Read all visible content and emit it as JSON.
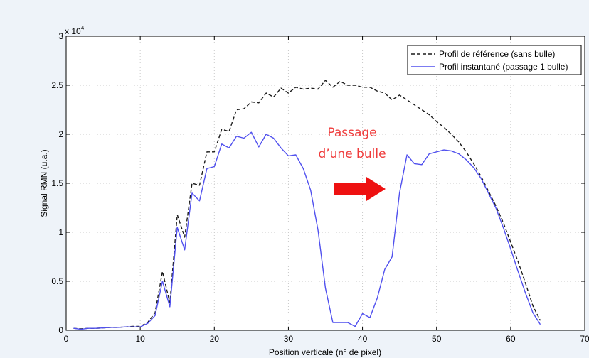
{
  "chart_data": {
    "type": "line",
    "xlabel": "Position verticale (n° de pixel)",
    "ylabel": "Signal RMN (u.a.)",
    "exponent_label": "x 10",
    "exponent_power": "4",
    "xlim": [
      0,
      70
    ],
    "ylim": [
      0,
      3
    ],
    "x_ticks": [
      0,
      10,
      20,
      30,
      40,
      50,
      60,
      70
    ],
    "y_ticks": [
      0,
      0.5,
      1,
      1.5,
      2,
      2.5,
      3
    ],
    "y_tick_labels": [
      "0",
      "0.5",
      "1",
      "1.5",
      "2",
      "2.5",
      "3"
    ],
    "grid": true,
    "legend_position": "top-right",
    "series": [
      {
        "name": "Profil de référence (sans bulle)",
        "color": "#1a1a1a",
        "style": "dashed",
        "x": [
          1,
          2,
          3,
          4,
          5,
          6,
          7,
          8,
          9,
          10,
          11,
          12,
          13,
          14,
          15,
          16,
          17,
          18,
          19,
          20,
          21,
          22,
          23,
          24,
          25,
          26,
          27,
          28,
          29,
          30,
          31,
          32,
          33,
          34,
          35,
          36,
          37,
          38,
          39,
          40,
          41,
          42,
          43,
          44,
          45,
          46,
          47,
          48,
          49,
          50,
          51,
          52,
          53,
          54,
          55,
          56,
          57,
          58,
          59,
          60,
          61,
          62,
          63,
          64
        ],
        "values": [
          0.02,
          0.015,
          0.02,
          0.02,
          0.025,
          0.03,
          0.03,
          0.035,
          0.04,
          0.04,
          0.08,
          0.18,
          0.6,
          0.28,
          1.18,
          0.95,
          1.5,
          1.48,
          1.82,
          1.82,
          2.05,
          2.03,
          2.25,
          2.26,
          2.33,
          2.32,
          2.42,
          2.38,
          2.47,
          2.42,
          2.48,
          2.46,
          2.47,
          2.46,
          2.55,
          2.48,
          2.54,
          2.5,
          2.5,
          2.48,
          2.48,
          2.44,
          2.42,
          2.35,
          2.4,
          2.35,
          2.3,
          2.25,
          2.2,
          2.13,
          2.07,
          2.0,
          1.92,
          1.82,
          1.7,
          1.57,
          1.42,
          1.27,
          1.1,
          0.9,
          0.7,
          0.48,
          0.25,
          0.1
        ]
      },
      {
        "name": "Profil instantané (passage 1 bulle)",
        "color": "#5050ee",
        "style": "solid",
        "x": [
          1,
          2,
          3,
          4,
          5,
          6,
          7,
          8,
          9,
          10,
          11,
          12,
          13,
          14,
          15,
          16,
          17,
          18,
          19,
          20,
          21,
          22,
          23,
          24,
          25,
          26,
          27,
          28,
          29,
          30,
          31,
          32,
          33,
          34,
          35,
          36,
          37,
          38,
          39,
          40,
          41,
          42,
          43,
          44,
          45,
          46,
          47,
          48,
          49,
          50,
          51,
          52,
          53,
          54,
          55,
          56,
          57,
          58,
          59,
          60,
          61,
          62,
          63,
          64
        ],
        "values": [
          0.02,
          0.01,
          0.02,
          0.02,
          0.025,
          0.03,
          0.03,
          0.035,
          0.035,
          0.035,
          0.07,
          0.15,
          0.5,
          0.24,
          1.05,
          0.82,
          1.4,
          1.32,
          1.65,
          1.67,
          1.9,
          1.86,
          1.98,
          1.96,
          2.02,
          1.87,
          2.0,
          1.96,
          1.86,
          1.78,
          1.79,
          1.65,
          1.43,
          1.02,
          0.43,
          0.08,
          0.08,
          0.08,
          0.04,
          0.17,
          0.13,
          0.33,
          0.62,
          0.75,
          1.4,
          1.79,
          1.7,
          1.69,
          1.8,
          1.82,
          1.84,
          1.83,
          1.8,
          1.74,
          1.66,
          1.55,
          1.4,
          1.25,
          1.05,
          0.83,
          0.6,
          0.38,
          0.18,
          0.06
        ]
      }
    ],
    "annotations": [
      {
        "text": "Passage",
        "arrow_color": "#ee1111"
      },
      {
        "text": "d’une bulle"
      }
    ]
  }
}
